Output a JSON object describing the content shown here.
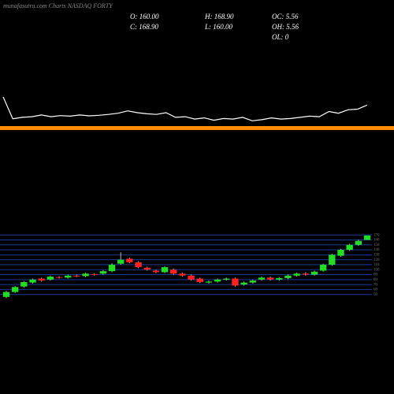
{
  "chart_data": {
    "type": "candlestick",
    "title": "munafasutra.com Charts NASDAQ FORTY",
    "annotations": [
      "O: 160.00",
      "H: 168.90",
      "OC: 5.56",
      "C: 168.90",
      "L: 160.00",
      "OH: 5.56",
      "OL: 0"
    ],
    "open": [
      45,
      55,
      66,
      74,
      82,
      80,
      85,
      84,
      88,
      87,
      91,
      92,
      97,
      112,
      122,
      115,
      104,
      98,
      95,
      100,
      92,
      88,
      82,
      74,
      76,
      80,
      82,
      70,
      74,
      80,
      84,
      80,
      83,
      88,
      92,
      90,
      98,
      110,
      128,
      140,
      150,
      160
    ],
    "high": [
      57,
      67,
      77,
      82,
      84,
      88,
      87,
      90,
      90,
      94,
      93,
      99,
      113,
      135,
      124,
      117,
      106,
      100,
      107,
      102,
      94,
      90,
      84,
      78,
      82,
      84,
      84,
      76,
      80,
      86,
      86,
      85,
      90,
      94,
      95,
      98,
      112,
      132,
      142,
      152,
      160,
      168.9
    ],
    "low": [
      43,
      53,
      64,
      72,
      76,
      78,
      82,
      82,
      85,
      85,
      88,
      90,
      95,
      110,
      113,
      103,
      98,
      93,
      93,
      90,
      86,
      78,
      73,
      72,
      74,
      78,
      66,
      68,
      72,
      78,
      78,
      78,
      81,
      86,
      88,
      88,
      96,
      108,
      126,
      138,
      148,
      160
    ],
    "close": [
      55,
      65,
      75,
      80,
      78,
      86,
      84,
      88,
      87,
      92,
      90,
      97,
      110,
      120,
      115,
      105,
      100,
      95,
      105,
      92,
      88,
      80,
      75,
      76,
      80,
      82,
      68,
      74,
      78,
      84,
      80,
      83,
      88,
      92,
      90,
      96,
      110,
      130,
      140,
      150,
      158,
      168.9
    ],
    "up_color": "#22dd22",
    "down_color": "#ff2020",
    "ylim": [
      40,
      175
    ],
    "yticks": [
      50,
      60,
      70,
      80,
      90,
      100,
      110,
      120,
      130,
      140,
      150,
      160,
      170
    ],
    "grid": true,
    "line_values": [
      140,
      65,
      70,
      72,
      78,
      72,
      76,
      74,
      78,
      75,
      77,
      80,
      84,
      92,
      86,
      82,
      80,
      86,
      70,
      72,
      64,
      68,
      60,
      66,
      64,
      70,
      58,
      62,
      68,
      64,
      66,
      70,
      74,
      72,
      90,
      84,
      96,
      98,
      112
    ],
    "line_color": "#ffffff",
    "line_ylim": [
      40,
      175
    ]
  }
}
